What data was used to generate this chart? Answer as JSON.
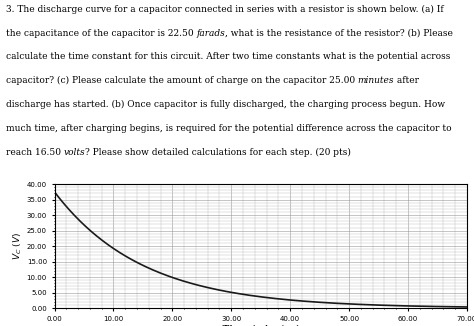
{
  "title": "",
  "xlabel": "Time (minutes)",
  "ylabel": "V_C (V)",
  "V0": 37.5,
  "tau": 15.0,
  "t_start": 0.0,
  "t_end": 70.0,
  "xlim": [
    0.0,
    70.0
  ],
  "ylim": [
    0.0,
    40.0
  ],
  "xticks": [
    0.0,
    10.0,
    20.0,
    30.0,
    40.0,
    50.0,
    60.0,
    70.0
  ],
  "yticks": [
    0.0,
    5.0,
    10.0,
    15.0,
    20.0,
    25.0,
    30.0,
    35.0,
    40.0
  ],
  "line_color": "#1a1a1a",
  "line_width": 1.2,
  "grid_color": "#999999",
  "grid_linewidth": 0.4,
  "minor_grid_color": "#bbbbbb",
  "minor_grid_linewidth": 0.3,
  "bg_color": "#ffffff",
  "text_fontsize": 6.5,
  "text_line1": "3. The discharge curve for a capacitor connected in series with a resistor is shown below. (a) If",
  "text_line2": "the capacitance of the capacitor is 22.50 ",
  "text_line2b": "farads",
  "text_line2c": ", what is the resistance of the resistor? (b) Please",
  "text_line3": "calculate the time constant for this circuit. After two time constants what is the potential across",
  "text_line4": "capacitor? (c) Please calculate the amount of charge on the capacitor 25.00 ",
  "text_line4b": "minutes",
  "text_line4c": " after",
  "text_line5": "discharge has started. (b) Once capacitor is fully discharged, the charging process begun. How",
  "text_line6": "much time, after charging begins, is required for the potential difference across the capacitor to",
  "text_line7": "reach 16.50 ",
  "text_line7b": "volts",
  "text_line7c": "? Please show detailed calculations for each step. (20 pts)"
}
